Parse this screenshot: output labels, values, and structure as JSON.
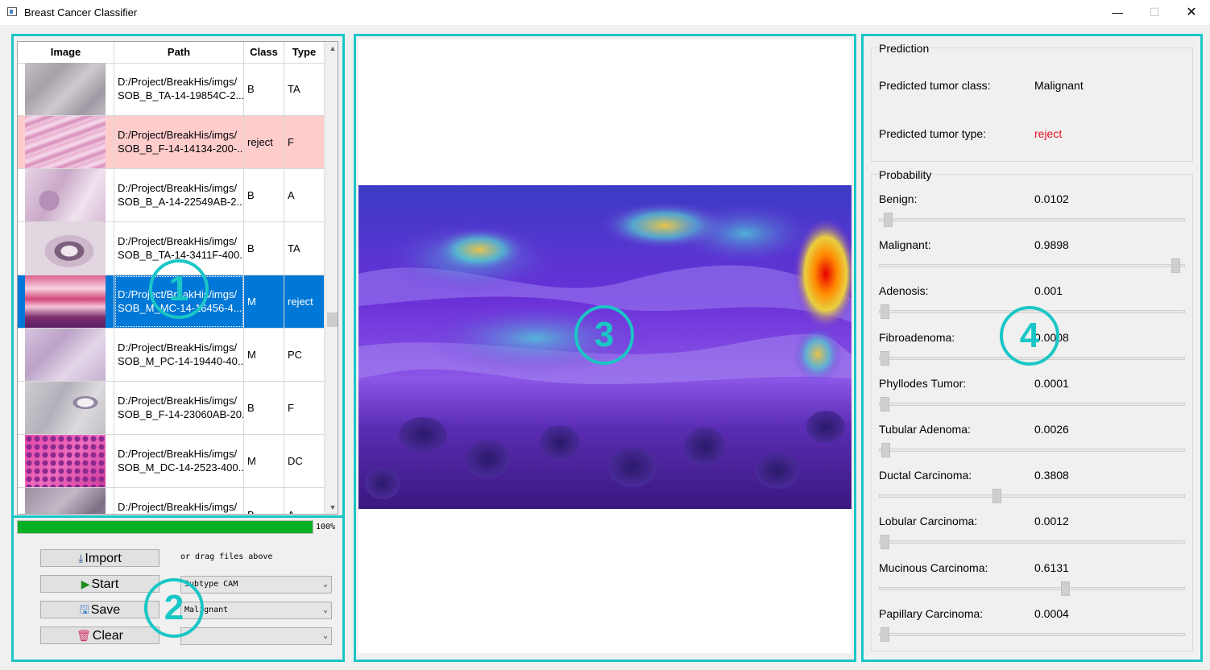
{
  "window": {
    "title": "Breast Cancer Classifier",
    "minimize": "—",
    "maximize": "☐",
    "close": "✕"
  },
  "annotations": {
    "n1": "1",
    "n2": "2",
    "n3": "3",
    "n4": "4"
  },
  "table": {
    "headers": [
      "Image",
      "Path",
      "Class",
      "Type"
    ],
    "rows": [
      {
        "path": "D:/Project/BreakHis/imgs/\nSOB_B_TA-14-19854C-2...",
        "class": "B",
        "type": "TA"
      },
      {
        "path": "D:/Project/BreakHis/imgs/\nSOB_B_F-14-14134-200-...",
        "class": "reject",
        "type": "F"
      },
      {
        "path": "D:/Project/BreakHis/imgs/\nSOB_B_A-14-22549AB-2...",
        "class": "B",
        "type": "A"
      },
      {
        "path": "D:/Project/BreakHis/imgs/\nSOB_B_TA-14-3411F-400...",
        "class": "B",
        "type": "TA"
      },
      {
        "path": "D:/Project/BreakHis/imgs/\nSOB_M_MC-14-16456-4...",
        "class": "M",
        "type": "reject"
      },
      {
        "path": "D:/Project/BreakHis/imgs/\nSOB_M_PC-14-19440-40...",
        "class": "M",
        "type": "PC"
      },
      {
        "path": "D:/Project/BreakHis/imgs/\nSOB_B_F-14-23060AB-20...",
        "class": "B",
        "type": "F"
      },
      {
        "path": "D:/Project/BreakHis/imgs/\nSOB_M_DC-14-2523-400...",
        "class": "M",
        "type": "DC"
      },
      {
        "path": "D:/Project/BreakHis/imgs/",
        "class": "B",
        "type": "A"
      }
    ]
  },
  "progress": {
    "value": 1.0,
    "text": "100%"
  },
  "controls": {
    "import_label": "Import",
    "start_label": "Start",
    "save_label": "Save",
    "clear_label": "Clear",
    "hint": "or drag files above",
    "cam_mode": "Subtype CAM",
    "class_filter": "Malignant",
    "third_select": ""
  },
  "prediction": {
    "group_title": "Prediction",
    "class_label": "Predicted tumor class:",
    "class_value": "Malignant",
    "type_label": "Predicted tumor type:",
    "type_value": "reject",
    "reject_color": "#e81123"
  },
  "probability": {
    "group_title": "Probability",
    "items": [
      {
        "label": "Benign:",
        "value": "0.0102",
        "level": 0.0102
      },
      {
        "label": "Malignant:",
        "value": "0.9898",
        "level": 0.9898
      },
      {
        "label": "Adenosis:",
        "value": "0.001",
        "level": 0.001
      },
      {
        "label": "Fibroadenoma:",
        "value": "0.0008",
        "level": 0.0008
      },
      {
        "label": "Phyllodes Tumor:",
        "value": "0.0001",
        "level": 0.0001
      },
      {
        "label": "Tubular Adenoma:",
        "value": "0.0026",
        "level": 0.0026
      },
      {
        "label": "Ductal Carcinoma:",
        "value": "0.3808",
        "level": 0.3808
      },
      {
        "label": "Lobular Carcinoma:",
        "value": "0.0012",
        "level": 0.0012
      },
      {
        "label": "Mucinous Carcinoma:",
        "value": "0.6131",
        "level": 0.6131
      },
      {
        "label": "Papillary Carcinoma:",
        "value": "0.0004",
        "level": 0.0004
      }
    ]
  },
  "colors": {
    "highlight": "#1ac6c6",
    "selection": "#0078d7",
    "reject_row": "#ffcccc",
    "progress": "#06b025"
  }
}
